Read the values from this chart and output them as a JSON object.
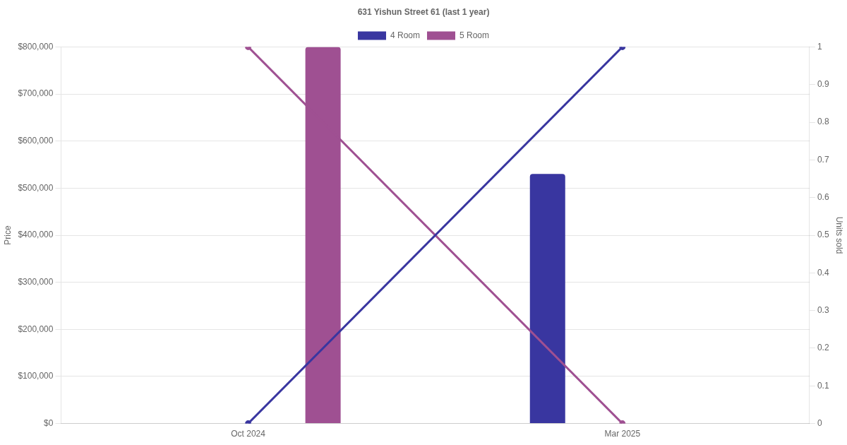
{
  "chart_data": {
    "type": "bar",
    "title": "631 Yishun Street 61 (last 1 year)",
    "ylabel": "Price",
    "y2label": "Units sold",
    "categories": [
      "Oct 2024",
      "Mar 2025"
    ],
    "series": [
      {
        "name": "4 Room",
        "color": "#3936a0",
        "values": [
          null,
          530000
        ]
      },
      {
        "name": "5 Room",
        "color": "#9f5092",
        "values": [
          800000,
          null
        ]
      },
      {
        "type": "line",
        "axis": "y2",
        "color": "#3936a0",
        "marker": "circle",
        "values": [
          0,
          1
        ]
      },
      {
        "type": "line",
        "axis": "y2",
        "color": "#9f5092",
        "marker": "circle",
        "values": [
          1,
          0
        ]
      }
    ],
    "ylim": [
      0,
      800000
    ],
    "yticks": [
      {
        "value": 0,
        "label": "$0"
      },
      {
        "value": 100000,
        "label": "$100,000"
      },
      {
        "value": 200000,
        "label": "$200,000"
      },
      {
        "value": 300000,
        "label": "$300,000"
      },
      {
        "value": 400000,
        "label": "$400,000"
      },
      {
        "value": 500000,
        "label": "$500,000"
      },
      {
        "value": 600000,
        "label": "$600,000"
      },
      {
        "value": 700000,
        "label": "$700,000"
      },
      {
        "value": 800000,
        "label": "$800,000"
      }
    ],
    "y2lim": [
      0,
      1
    ],
    "y2ticks": [
      0,
      0.1,
      0.2,
      0.3,
      0.4,
      0.5,
      0.6,
      0.7,
      0.8,
      0.9,
      1
    ],
    "grid": "y",
    "legend": "top"
  }
}
